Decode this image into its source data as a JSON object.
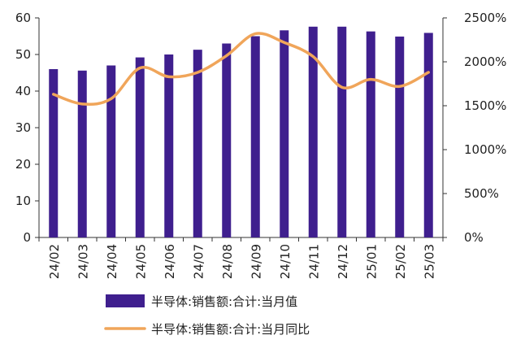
{
  "chart_data": {
    "type": "bar",
    "categories": [
      "24/02",
      "24/03",
      "24/04",
      "24/05",
      "24/06",
      "24/07",
      "24/08",
      "24/09",
      "24/10",
      "24/11",
      "24/12",
      "25/01",
      "25/02",
      "25/03"
    ],
    "series": [
      {
        "name": "半导体:销售额:合计:当月值",
        "type": "bar",
        "axis": "left",
        "color": "#3f1f8e",
        "values": [
          46.0,
          45.6,
          47.0,
          49.2,
          50.0,
          51.3,
          53.0,
          55.0,
          56.6,
          57.6,
          57.6,
          56.3,
          54.9,
          55.9
        ]
      },
      {
        "name": "半导体:销售额:合计:当月同比",
        "type": "line",
        "axis": "right",
        "color": "#f0a55a",
        "values": [
          1630,
          1520,
          1580,
          1930,
          1830,
          1880,
          2070,
          2320,
          2220,
          2060,
          1710,
          1800,
          1720,
          1880
        ]
      }
    ],
    "y_left": {
      "ylim": [
        0,
        60
      ],
      "ticks": [
        "0",
        "10",
        "20",
        "30",
        "40",
        "50",
        "60"
      ]
    },
    "y_right": {
      "ylim": [
        0,
        2500
      ],
      "ticks": [
        "0%",
        "500%",
        "1000%",
        "1500%",
        "2000%",
        "2500%"
      ]
    },
    "grid": false,
    "legend_position": "bottom"
  }
}
